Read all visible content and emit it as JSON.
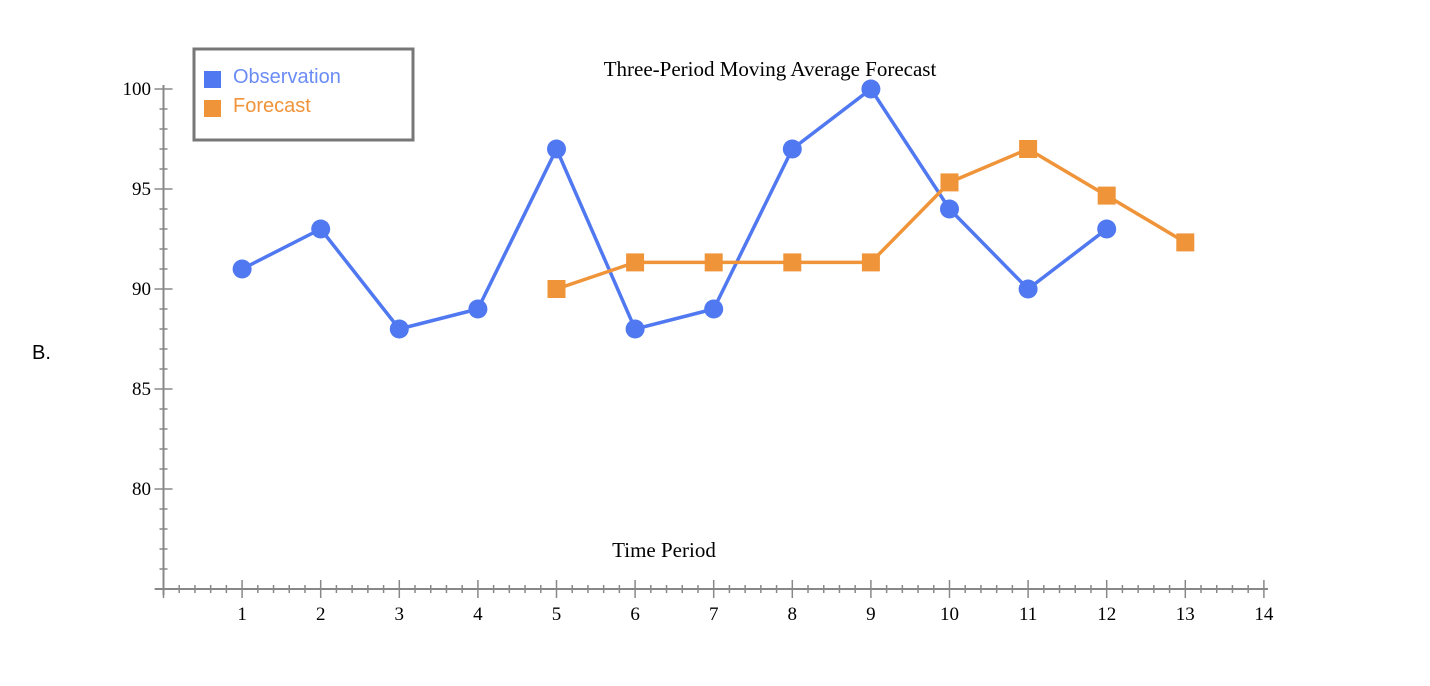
{
  "option_label": "B.",
  "chart_data": {
    "type": "line",
    "title": "Three-Period Moving Average Forecast",
    "xlabel": "Time Period",
    "ylabel": "",
    "xlim": [
      0,
      14
    ],
    "ylim": [
      75,
      100
    ],
    "x_ticks": [
      1,
      2,
      3,
      4,
      5,
      6,
      7,
      8,
      9,
      10,
      11,
      12,
      13,
      14
    ],
    "y_ticks": [
      80,
      85,
      90,
      95,
      100
    ],
    "grid": false,
    "legend_position": "top-left",
    "series": [
      {
        "name": "Observation",
        "color": "#5078f0",
        "marker": "circle",
        "x": [
          1,
          2,
          3,
          4,
          5,
          6,
          7,
          8,
          9,
          10,
          11,
          12
        ],
        "y": [
          91,
          93,
          88,
          89,
          97,
          88,
          89,
          97,
          100,
          94,
          90,
          93
        ]
      },
      {
        "name": "Forecast",
        "color": "#f0943a",
        "marker": "square",
        "x": [
          5,
          6,
          7,
          8,
          9,
          10,
          11,
          12,
          13
        ],
        "y": [
          90,
          91.33,
          91.33,
          91.33,
          91.33,
          95.33,
          97,
          94.67,
          92.33
        ]
      }
    ]
  }
}
